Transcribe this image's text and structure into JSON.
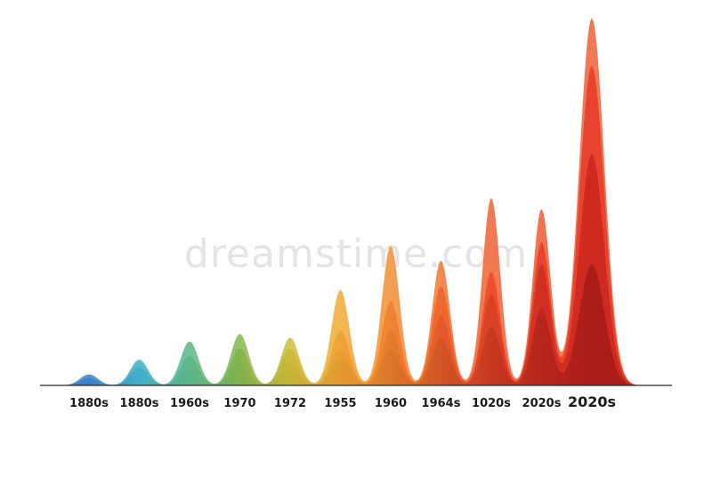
{
  "watermark": "dreamstime.com",
  "chart_data": {
    "type": "area",
    "title": "",
    "xlabel": "",
    "ylabel": "",
    "categories": [
      "1880s",
      "1880s",
      "1960s",
      "1970",
      "1972",
      "1955",
      "1960",
      "1964s",
      "1020s",
      "2020s",
      "2020s"
    ],
    "ylim": [
      0,
      100
    ],
    "grid": false,
    "legend": "none",
    "series": [
      {
        "values": [
          3,
          7,
          12,
          14,
          13,
          26,
          38,
          34,
          51,
          48,
          100
        ],
        "color": "#f26a3c"
      },
      {
        "values": [
          2,
          5,
          8,
          10,
          10,
          15,
          23,
          27,
          31,
          39,
          87
        ],
        "color": "#e8402c"
      },
      {
        "values": [
          1,
          3,
          5,
          6,
          6,
          10,
          15,
          19,
          25,
          33,
          63
        ],
        "color": "#c8261e"
      },
      {
        "values": [
          0.5,
          2,
          3,
          4,
          4,
          7,
          10,
          13,
          16,
          21,
          33
        ],
        "color": "#9e1818"
      }
    ],
    "category_colors": [
      "#3a7fc8",
      "#3fb0c8",
      "#58b98a",
      "#7cbb4d",
      "#c8c83c",
      "#f2b834",
      "#f29a2f",
      "#f27a2d",
      "#ee5a28",
      "#e53c23",
      "#e02a1f"
    ]
  }
}
